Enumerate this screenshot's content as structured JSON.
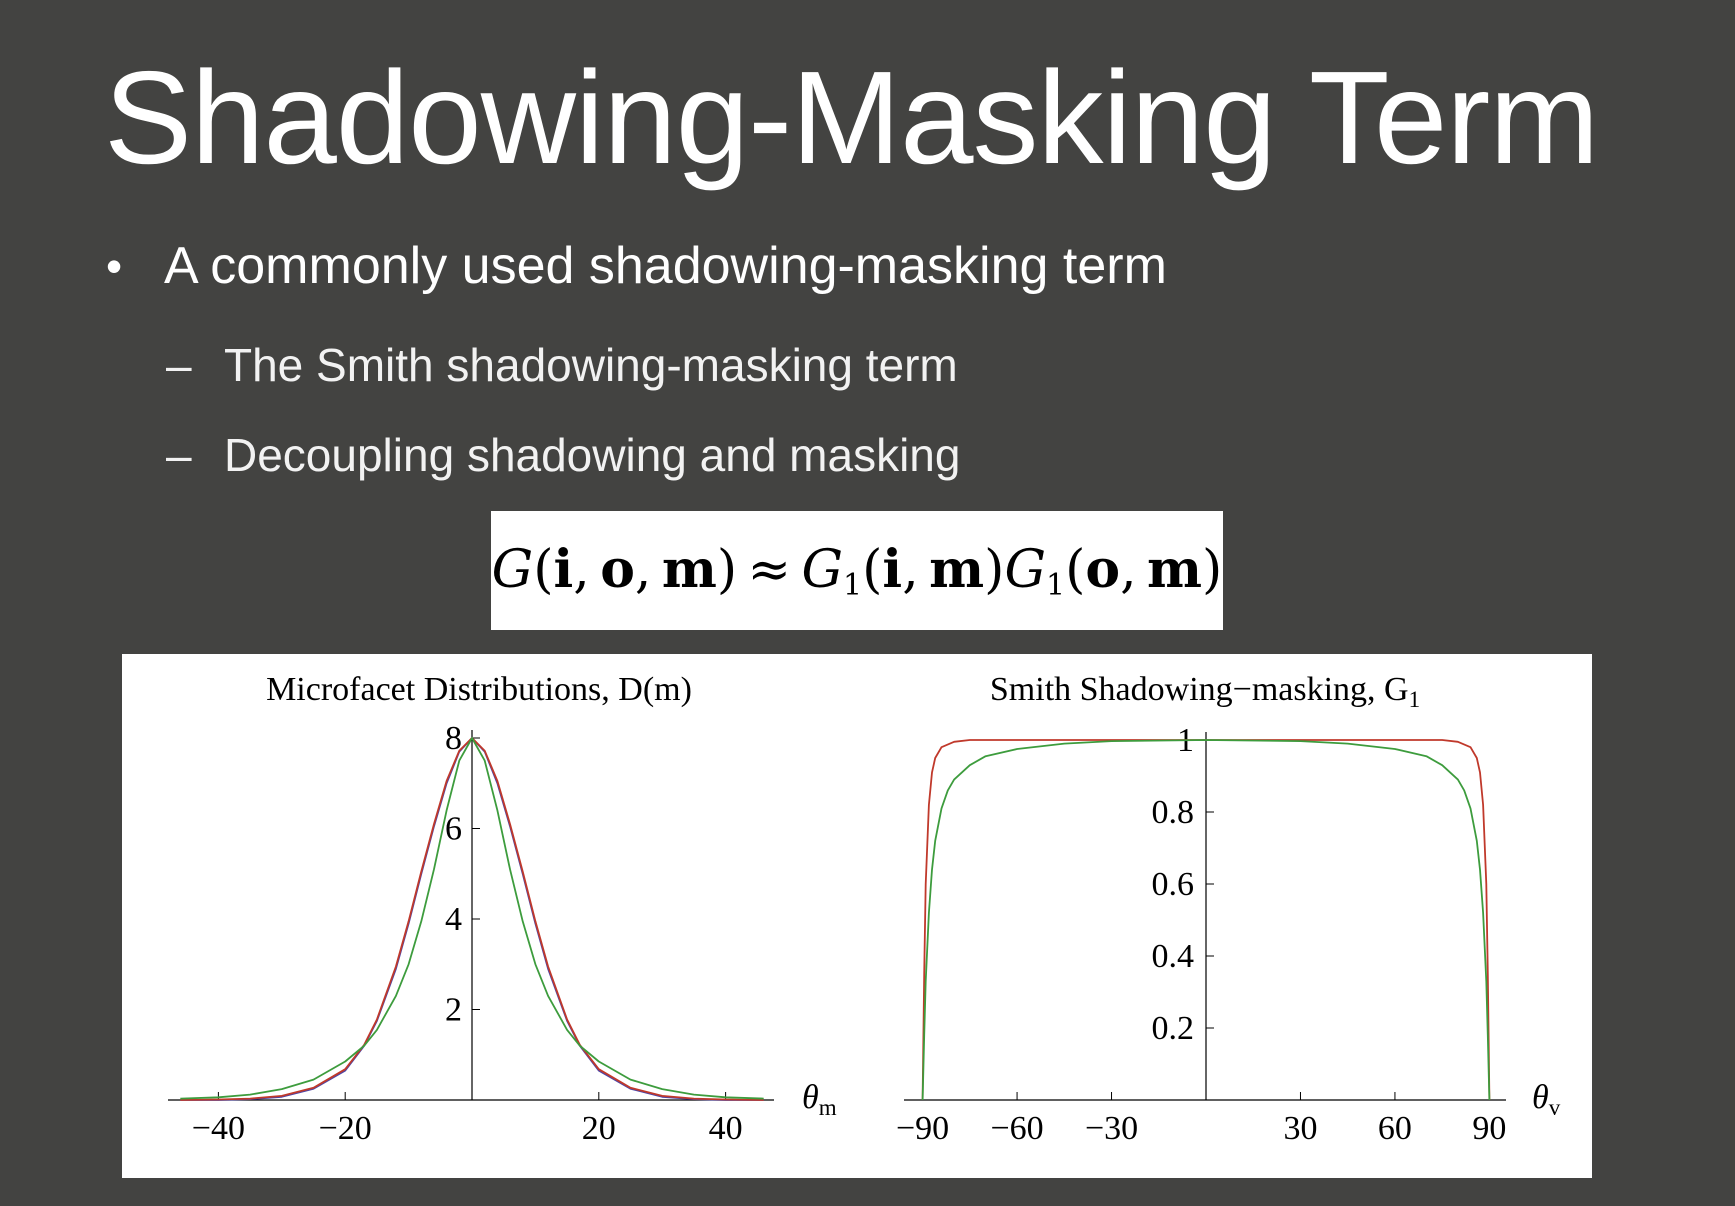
{
  "slide": {
    "title": "Shadowing-Masking Term",
    "bullet": {
      "marker": "•",
      "text": "A commonly used shadowing-masking term"
    },
    "sub_bullets": [
      {
        "marker": "–",
        "text": "The Smith shadowing-masking term"
      },
      {
        "marker": "–",
        "text": "Decoupling shadowing and masking"
      }
    ],
    "formula": {
      "lhs_G": "G",
      "lhs_args": [
        "i",
        "o",
        "m"
      ],
      "approx": "≈",
      "G1": "G",
      "G1_sub": "1",
      "term1_args": [
        "i",
        "m"
      ],
      "term2_args": [
        "o",
        "m"
      ]
    }
  },
  "chart_data": [
    {
      "type": "line",
      "title": "Microfacet Distributions, D(m)",
      "xlabel": "θ",
      "xlabel_sub": "m",
      "xlim": [
        -47,
        47
      ],
      "ylim": [
        0,
        8
      ],
      "xticks": [
        -40,
        -20,
        20,
        40
      ],
      "xtick_labels": [
        "−40",
        "−20",
        "20",
        "40"
      ],
      "yticks": [
        2,
        4,
        6,
        8
      ],
      "ytick_labels": [
        "2",
        "4",
        "6",
        "8"
      ],
      "series": [
        {
          "color": "#4b45a8",
          "values": [
            [
              -46,
              0.0
            ],
            [
              -40,
              0.0
            ],
            [
              -35,
              0.02
            ],
            [
              -30,
              0.07
            ],
            [
              -25,
              0.25
            ],
            [
              -20,
              0.65
            ],
            [
              -17,
              1.2
            ],
            [
              -15,
              1.75
            ],
            [
              -12,
              2.9
            ],
            [
              -10,
              3.9
            ],
            [
              -8,
              5.0
            ],
            [
              -6,
              6.05
            ],
            [
              -4,
              7.0
            ],
            [
              -2,
              7.7
            ],
            [
              0,
              8.0
            ],
            [
              2,
              7.7
            ],
            [
              4,
              7.0
            ],
            [
              6,
              6.05
            ],
            [
              8,
              5.0
            ],
            [
              10,
              3.9
            ],
            [
              12,
              2.9
            ],
            [
              15,
              1.75
            ],
            [
              17,
              1.2
            ],
            [
              20,
              0.65
            ],
            [
              25,
              0.25
            ],
            [
              30,
              0.07
            ],
            [
              35,
              0.02
            ],
            [
              40,
              0.0
            ],
            [
              46,
              0.0
            ]
          ]
        },
        {
          "color": "#c0392b",
          "values": [
            [
              -46,
              0.0
            ],
            [
              -40,
              0.01
            ],
            [
              -35,
              0.03
            ],
            [
              -30,
              0.09
            ],
            [
              -25,
              0.27
            ],
            [
              -20,
              0.68
            ],
            [
              -17,
              1.22
            ],
            [
              -15,
              1.78
            ],
            [
              -12,
              2.95
            ],
            [
              -10,
              3.95
            ],
            [
              -8,
              5.05
            ],
            [
              -6,
              6.1
            ],
            [
              -4,
              7.05
            ],
            [
              -2,
              7.72
            ],
            [
              0,
              8.0
            ],
            [
              2,
              7.72
            ],
            [
              4,
              7.05
            ],
            [
              6,
              6.1
            ],
            [
              8,
              5.05
            ],
            [
              10,
              3.95
            ],
            [
              12,
              2.95
            ],
            [
              15,
              1.78
            ],
            [
              17,
              1.22
            ],
            [
              20,
              0.68
            ],
            [
              25,
              0.27
            ],
            [
              30,
              0.09
            ],
            [
              35,
              0.03
            ],
            [
              40,
              0.01
            ],
            [
              46,
              0.0
            ]
          ]
        },
        {
          "color": "#3d9c3d",
          "values": [
            [
              -46,
              0.03
            ],
            [
              -40,
              0.06
            ],
            [
              -35,
              0.12
            ],
            [
              -30,
              0.24
            ],
            [
              -25,
              0.45
            ],
            [
              -20,
              0.85
            ],
            [
              -17,
              1.2
            ],
            [
              -15,
              1.55
            ],
            [
              -12,
              2.3
            ],
            [
              -10,
              3.0
            ],
            [
              -8,
              3.95
            ],
            [
              -6,
              5.1
            ],
            [
              -4,
              6.4
            ],
            [
              -2,
              7.5
            ],
            [
              0,
              8.0
            ],
            [
              2,
              7.5
            ],
            [
              4,
              6.4
            ],
            [
              6,
              5.1
            ],
            [
              8,
              3.95
            ],
            [
              10,
              3.0
            ],
            [
              12,
              2.3
            ],
            [
              15,
              1.55
            ],
            [
              17,
              1.2
            ],
            [
              20,
              0.85
            ],
            [
              25,
              0.45
            ],
            [
              30,
              0.24
            ],
            [
              35,
              0.12
            ],
            [
              40,
              0.06
            ],
            [
              46,
              0.03
            ]
          ]
        }
      ]
    },
    {
      "type": "line",
      "title": "Smith Shadowing−masking, G",
      "title_sub": "1",
      "xlabel": "θ",
      "xlabel_sub": "v",
      "xlim": [
        -94,
        94
      ],
      "ylim": [
        0,
        1
      ],
      "xticks": [
        -90,
        -60,
        -30,
        30,
        60,
        90
      ],
      "xtick_labels": [
        "−90",
        "−60",
        "−30",
        "30",
        "60",
        "90"
      ],
      "yticks": [
        0.2,
        0.4,
        0.6,
        0.8,
        1
      ],
      "ytick_labels": [
        "0.2",
        "0.4",
        "0.6",
        "0.8",
        "1"
      ],
      "series": [
        {
          "color": "#c0392b",
          "values": [
            [
              -90,
              0.0
            ],
            [
              -89.5,
              0.35
            ],
            [
              -89,
              0.6
            ],
            [
              -88,
              0.82
            ],
            [
              -87,
              0.91
            ],
            [
              -86,
              0.95
            ],
            [
              -84,
              0.98
            ],
            [
              -80,
              0.995
            ],
            [
              -75,
              1.0
            ],
            [
              0,
              1.0
            ],
            [
              75,
              1.0
            ],
            [
              80,
              0.995
            ],
            [
              84,
              0.98
            ],
            [
              86,
              0.95
            ],
            [
              87,
              0.91
            ],
            [
              88,
              0.82
            ],
            [
              89,
              0.6
            ],
            [
              89.5,
              0.35
            ],
            [
              90,
              0.0
            ]
          ]
        },
        {
          "color": "#3d9c3d",
          "values": [
            [
              -90,
              0.0
            ],
            [
              -89.5,
              0.18
            ],
            [
              -89,
              0.33
            ],
            [
              -88,
              0.52
            ],
            [
              -87,
              0.64
            ],
            [
              -86,
              0.72
            ],
            [
              -84,
              0.81
            ],
            [
              -82,
              0.86
            ],
            [
              -80,
              0.89
            ],
            [
              -75,
              0.93
            ],
            [
              -70,
              0.955
            ],
            [
              -60,
              0.975
            ],
            [
              -45,
              0.99
            ],
            [
              -30,
              0.997
            ],
            [
              0,
              1.0
            ],
            [
              30,
              0.997
            ],
            [
              45,
              0.99
            ],
            [
              60,
              0.975
            ],
            [
              70,
              0.955
            ],
            [
              75,
              0.93
            ],
            [
              80,
              0.89
            ],
            [
              82,
              0.86
            ],
            [
              84,
              0.81
            ],
            [
              86,
              0.72
            ],
            [
              87,
              0.64
            ],
            [
              88,
              0.52
            ],
            [
              89,
              0.33
            ],
            [
              89.5,
              0.18
            ],
            [
              90,
              0.0
            ]
          ]
        }
      ]
    }
  ]
}
